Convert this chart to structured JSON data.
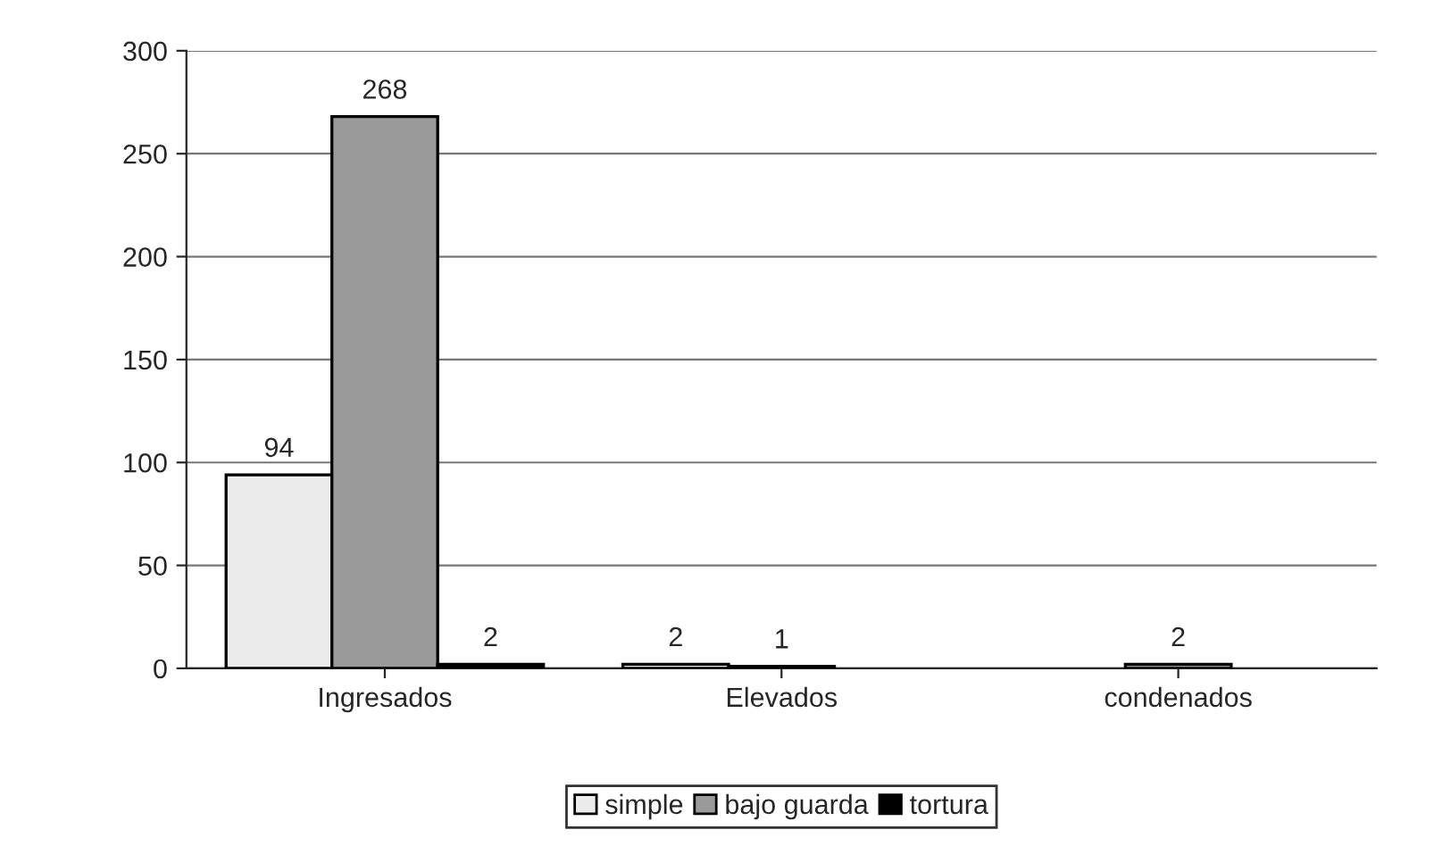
{
  "chart_data": {
    "type": "bar",
    "categories": [
      "Ingresados",
      "Elevados",
      "condenados"
    ],
    "series": [
      {
        "name": "simple",
        "color": "#ececec",
        "values": [
          94,
          2,
          null
        ]
      },
      {
        "name": "bajo guarda",
        "color": "#9a9a9a",
        "values": [
          268,
          1,
          2
        ]
      },
      {
        "name": "tortura",
        "color": "#000000",
        "values": [
          2,
          null,
          null
        ]
      }
    ],
    "ylim": [
      0,
      300
    ],
    "yticks": [
      0,
      50,
      100,
      150,
      200,
      250,
      300
    ],
    "grid": "y",
    "legend": "bottom",
    "data_labels": true
  }
}
